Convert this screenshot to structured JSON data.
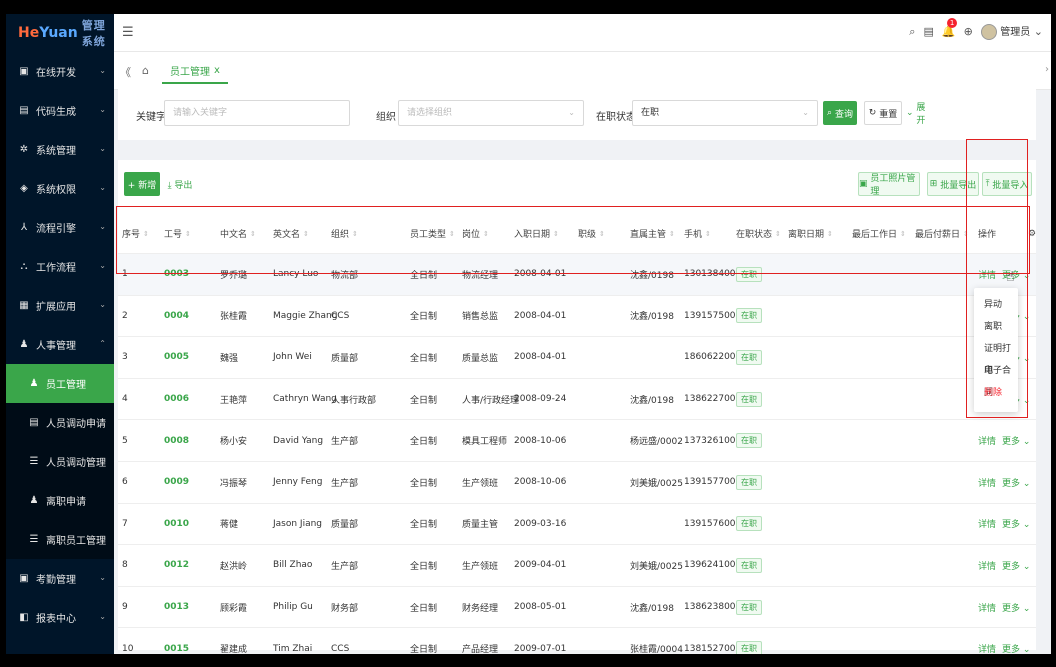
{
  "logo": {
    "text_a": "He",
    "text_b": "Yuan",
    "text_c": "管理系统"
  },
  "sidebar": {
    "items": [
      {
        "label": "在线开发",
        "icon": "monitor-icon",
        "glyph": "▣",
        "chev": "⌄"
      },
      {
        "label": "代码生成",
        "icon": "code-icon",
        "glyph": "▤",
        "chev": "⌄"
      },
      {
        "label": "系统管理",
        "icon": "gear-icon",
        "glyph": "✲",
        "chev": "⌄"
      },
      {
        "label": "系统权限",
        "icon": "shield-icon",
        "glyph": "◈",
        "chev": "⌄"
      },
      {
        "label": "流程引擎",
        "icon": "flow-icon",
        "glyph": "⅄",
        "chev": "⌄"
      },
      {
        "label": "工作流程",
        "icon": "workflow-icon",
        "glyph": "⛬",
        "chev": "⌄"
      },
      {
        "label": "扩展应用",
        "icon": "apps-icon",
        "glyph": "▦",
        "chev": "⌄"
      },
      {
        "label": "人事管理",
        "icon": "person-icon",
        "glyph": "♟",
        "chev": "⌃"
      },
      {
        "label": "员工管理",
        "icon": "user-icon",
        "glyph": "♟",
        "chev": ""
      },
      {
        "label": "人员调动申请",
        "icon": "doc-icon",
        "glyph": "▤",
        "chev": ""
      },
      {
        "label": "人员调动管理",
        "icon": "list-icon",
        "glyph": "☰",
        "chev": ""
      },
      {
        "label": "离职申请",
        "icon": "person-leave-icon",
        "glyph": "♟",
        "chev": ""
      },
      {
        "label": "离职员工管理",
        "icon": "list-icon",
        "glyph": "☰",
        "chev": ""
      },
      {
        "label": "考勤管理",
        "icon": "calendar-icon",
        "glyph": "▣",
        "chev": "⌄"
      },
      {
        "label": "报表中心",
        "icon": "report-icon",
        "glyph": "◧",
        "chev": "⌄"
      }
    ]
  },
  "header": {
    "collapse": "☰",
    "user": "管理员",
    "badge": "1",
    "search_glyph": "⌕",
    "doc_glyph": "▤",
    "bell_glyph": "🔔",
    "globe_glyph": "⊕"
  },
  "tabs": {
    "back": "《",
    "home": "⌂",
    "active_label": "员工管理",
    "close": "x",
    "right": "›"
  },
  "search": {
    "keyword_label": "关键字",
    "keyword_placeholder": "请输入关键字",
    "org_label": "组织",
    "org_placeholder": "请选择组织",
    "status_label": "在职状态",
    "status_value": "在职",
    "query": "查询",
    "reset": "重置",
    "expand": "展开"
  },
  "toolbar": {
    "add": "+ 新增",
    "export": "⤓ 导出",
    "photo": "员工照片管理",
    "batch_export": "批量导出",
    "batch_import": "批量导入"
  },
  "columns": [
    "序号",
    "工号",
    "中文名",
    "英文名",
    "组织",
    "员工类型",
    "岗位",
    "入职日期",
    "职级",
    "直属主管",
    "手机",
    "在职状态",
    "离职日期",
    "最后工作日",
    "最后付薪日",
    "操作"
  ],
  "rows": [
    {
      "no": "1",
      "id": "0003",
      "cn": "罗乔璐",
      "en": "Lancy Luo",
      "org": "物流部",
      "type": "全日制",
      "post": "物流经理",
      "date": "2008-04-01",
      "mgr": "沈鑫/0198",
      "phone": "13013840086",
      "status": "在职"
    },
    {
      "no": "2",
      "id": "0004",
      "cn": "张桂霞",
      "en": "Maggie Zhang",
      "org": "CCS",
      "type": "全日制",
      "post": "销售总监",
      "date": "2008-04-01",
      "mgr": "沈鑫/0198",
      "phone": "13915750086",
      "status": "在职"
    },
    {
      "no": "3",
      "id": "0005",
      "cn": "魏强",
      "en": "John Wei",
      "org": "质量部",
      "type": "全日制",
      "post": "质量总监",
      "date": "2008-04-01",
      "mgr": "",
      "phone": "18606220086",
      "status": "在职"
    },
    {
      "no": "4",
      "id": "0006",
      "cn": "王艳萍",
      "en": "Cathryn Wang",
      "org": "人事行政部",
      "type": "全日制",
      "post": "人事/行政经理",
      "date": "2008-09-24",
      "mgr": "沈鑫/0198",
      "phone": "13862270086",
      "status": "在职"
    },
    {
      "no": "5",
      "id": "0008",
      "cn": "杨小安",
      "en": "David Yang",
      "org": "生产部",
      "type": "全日制",
      "post": "模具工程师",
      "date": "2008-10-06",
      "mgr": "杨远盛/0002",
      "phone": "13732610086",
      "status": "在职"
    },
    {
      "no": "6",
      "id": "0009",
      "cn": "冯振琴",
      "en": "Jenny Feng",
      "org": "生产部",
      "type": "全日制",
      "post": "生产领班",
      "date": "2008-10-06",
      "mgr": "刘美娥/0025",
      "phone": "13915770086",
      "status": "在职"
    },
    {
      "no": "7",
      "id": "0010",
      "cn": "蒋健",
      "en": "Jason Jiang",
      "org": "质量部",
      "type": "全日制",
      "post": "质量主管",
      "date": "2009-03-16",
      "mgr": "",
      "phone": "13915760086",
      "status": "在职"
    },
    {
      "no": "8",
      "id": "0012",
      "cn": "赵洪岭",
      "en": "Bill Zhao",
      "org": "生产部",
      "type": "全日制",
      "post": "生产领班",
      "date": "2009-04-01",
      "mgr": "刘美娥/0025",
      "phone": "13962410086",
      "status": "在职"
    },
    {
      "no": "9",
      "id": "0013",
      "cn": "顾彩霞",
      "en": "Philip Gu",
      "org": "财务部",
      "type": "全日制",
      "post": "财务经理",
      "date": "2008-05-01",
      "mgr": "沈鑫/0198",
      "phone": "13862380086",
      "status": "在职"
    },
    {
      "no": "10",
      "id": "0015",
      "cn": "翟建成",
      "en": "Tim Zhai",
      "org": "CCS",
      "type": "全日制",
      "post": "产品经理",
      "date": "2009-07-01",
      "mgr": "张桂霞/0004",
      "phone": "13815270086",
      "status": "在职"
    }
  ],
  "ops": {
    "detail": "详情",
    "more": "更多 ⌄"
  },
  "dropdown": [
    "异动",
    "离职",
    "证明打印",
    "电子合同",
    "删除"
  ],
  "colors": {
    "accent": "#3aa64a",
    "sidebar": "#001529",
    "danger": "#f5222d",
    "highlight": "#e02020"
  }
}
